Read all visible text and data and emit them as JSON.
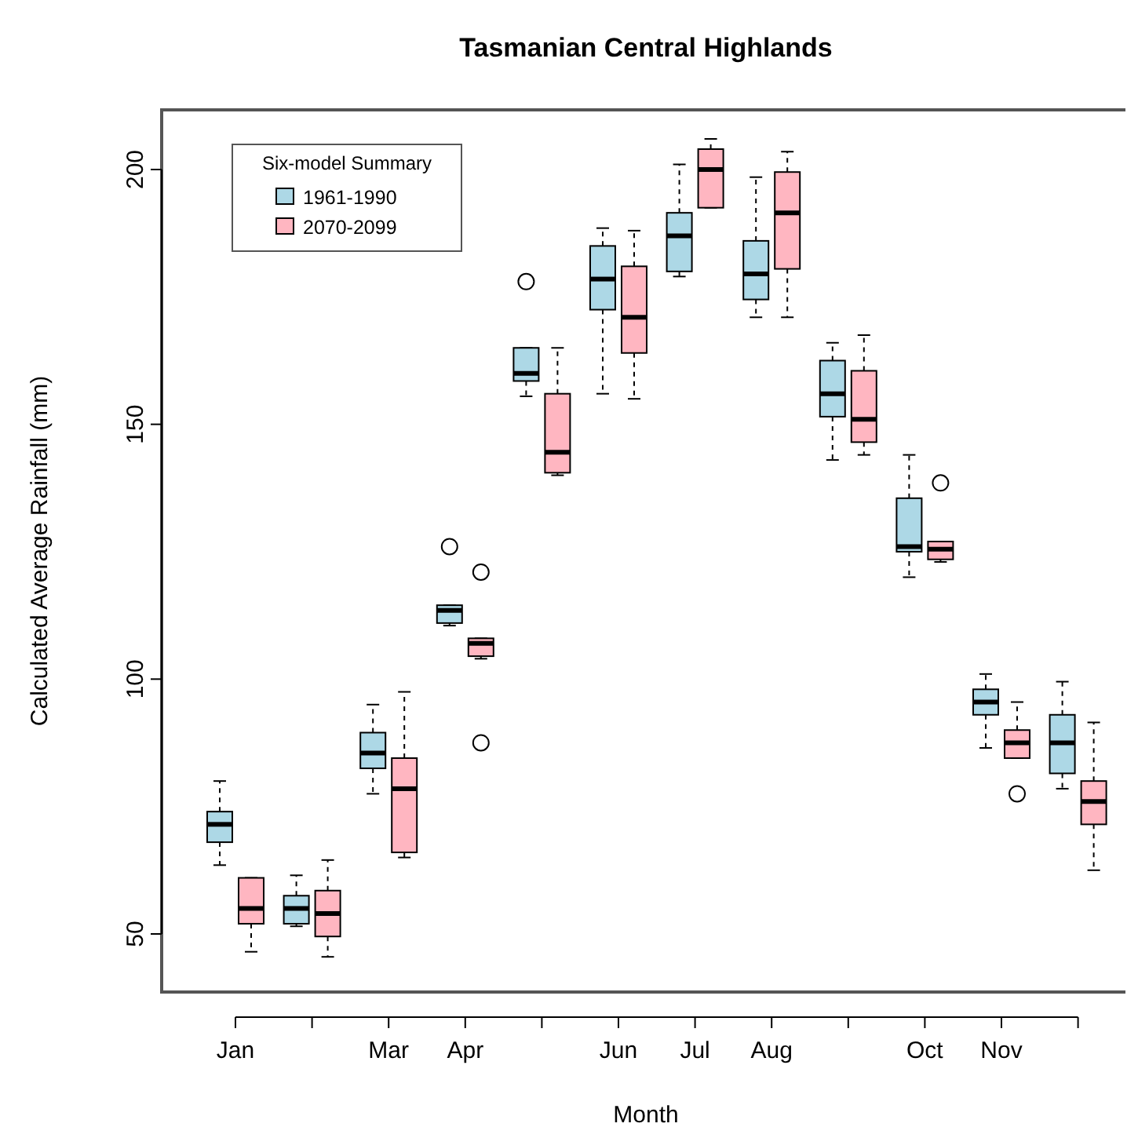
{
  "chart_data": {
    "type": "box",
    "title": "Tasmanian Central Highlands",
    "xlabel": "Month",
    "ylabel": "Calculated Average Rainfall (mm)",
    "legend_title": "Six-model Summary",
    "legend": "top left",
    "grid": false,
    "categories": [
      "Jan",
      null,
      "Mar",
      "Apr",
      null,
      "Jun",
      "Jul",
      "Aug",
      null,
      "Oct",
      "Nov",
      null
    ],
    "ylim": [
      38.6,
      211.7
    ],
    "yticks": [
      50,
      100,
      150,
      200
    ],
    "series": [
      {
        "name": "1961-1990",
        "color": "#add8e6",
        "boxes": [
          {
            "low": 63.5,
            "q1": 68,
            "median": 71.5,
            "q3": 74,
            "high": 80
          },
          {
            "low": 51.5,
            "q1": 52,
            "median": 55,
            "q3": 57.5,
            "high": 61.5
          },
          {
            "low": 77.5,
            "q1": 82.5,
            "median": 85.5,
            "q3": 89.5,
            "high": 95
          },
          {
            "low": 110.5,
            "q1": 111,
            "median": 113.5,
            "q3": 114.5,
            "high": 114.5,
            "outliers": [
              126
            ]
          },
          {
            "low": 155.5,
            "q1": 158.5,
            "median": 160,
            "q3": 165,
            "high": 165,
            "outliers": [
              178
            ]
          },
          {
            "low": 156,
            "q1": 172.5,
            "median": 178.5,
            "q3": 185,
            "high": 188.5
          },
          {
            "low": 179,
            "q1": 180,
            "median": 187,
            "q3": 191.5,
            "high": 201
          },
          {
            "low": 171,
            "q1": 174.5,
            "median": 179.5,
            "q3": 186,
            "high": 198.5
          },
          {
            "low": 143,
            "q1": 151.5,
            "median": 156,
            "q3": 162.5,
            "high": 166
          },
          {
            "low": 120,
            "q1": 125,
            "median": 126,
            "q3": 135.5,
            "high": 144
          },
          {
            "low": 86.5,
            "q1": 93,
            "median": 95.5,
            "q3": 98,
            "high": 101
          },
          {
            "low": 78.5,
            "q1": 81.5,
            "median": 87.5,
            "q3": 93,
            "high": 99.5
          }
        ]
      },
      {
        "name": "2070-2099",
        "color": "#ffb6c1",
        "boxes": [
          {
            "low": 46.5,
            "q1": 52,
            "median": 55,
            "q3": 61,
            "high": 61
          },
          {
            "low": 45.5,
            "q1": 49.5,
            "median": 54,
            "q3": 58.5,
            "high": 64.5
          },
          {
            "low": 65,
            "q1": 66,
            "median": 78.5,
            "q3": 84.5,
            "high": 97.5
          },
          {
            "low": 104,
            "q1": 104.5,
            "median": 107,
            "q3": 108,
            "high": 108,
            "outliers": [
              121,
              87.5
            ]
          },
          {
            "low": 140,
            "q1": 140.5,
            "median": 144.5,
            "q3": 156,
            "high": 165
          },
          {
            "low": 155,
            "q1": 164,
            "median": 171,
            "q3": 181,
            "high": 188
          },
          {
            "low": 192.5,
            "q1": 192.5,
            "median": 200,
            "q3": 204,
            "high": 206
          },
          {
            "low": 171,
            "q1": 180.5,
            "median": 191.5,
            "q3": 199.5,
            "high": 203.5
          },
          {
            "low": 144,
            "q1": 146.5,
            "median": 151,
            "q3": 160.5,
            "high": 167.5
          },
          {
            "low": 123,
            "q1": 123.5,
            "median": 125.5,
            "q3": 127,
            "high": 127,
            "outliers": [
              138.5
            ]
          },
          {
            "low": 84.5,
            "q1": 84.5,
            "median": 87.5,
            "q3": 90,
            "high": 95.5,
            "outliers": [
              77.5
            ]
          },
          {
            "low": 62.5,
            "q1": 71.5,
            "median": 76,
            "q3": 80,
            "high": 91.5
          }
        ]
      }
    ]
  }
}
